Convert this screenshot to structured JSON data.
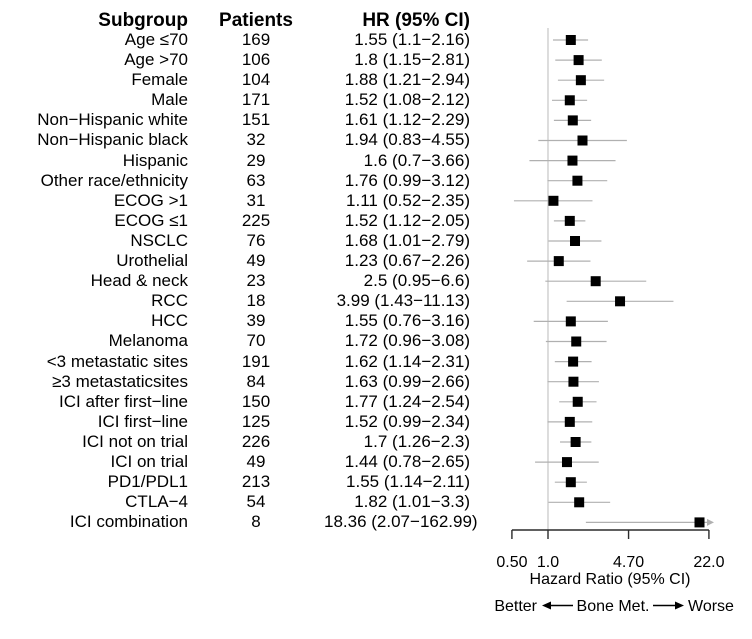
{
  "table": {
    "headers": [
      "Subgroup",
      "Patients",
      "HR (95% CI)"
    ]
  },
  "chart_data": {
    "type": "forest",
    "axis": {
      "scale": "log",
      "min": 0.5,
      "max": 22.0,
      "ref_line": 1.0,
      "ticks": [
        0.5,
        1.0,
        4.7,
        22.0
      ],
      "tick_labels": [
        "0.50",
        "1.0",
        "4.70",
        "22.0"
      ],
      "xlabel": "Hazard Ratio (95% CI)"
    },
    "footer": {
      "left": "Better",
      "center": "Bone Met.",
      "right": "Worse"
    },
    "rows": [
      {
        "subgroup": "Age ≤70",
        "patients": "169",
        "hr": 1.55,
        "lo": 1.1,
        "hi": 2.16,
        "hr_text": "1.55 (1.1−2.16)"
      },
      {
        "subgroup": "Age >70",
        "patients": "106",
        "hr": 1.8,
        "lo": 1.15,
        "hi": 2.81,
        "hr_text": "1.8 (1.15−2.81)"
      },
      {
        "subgroup": "Female",
        "patients": "104",
        "hr": 1.88,
        "lo": 1.21,
        "hi": 2.94,
        "hr_text": "1.88 (1.21−2.94)"
      },
      {
        "subgroup": "Male",
        "patients": "171",
        "hr": 1.52,
        "lo": 1.08,
        "hi": 2.12,
        "hr_text": "1.52 (1.08−2.12)"
      },
      {
        "subgroup": "Non−Hispanic white",
        "patients": "151",
        "hr": 1.61,
        "lo": 1.12,
        "hi": 2.29,
        "hr_text": "1.61 (1.12−2.29)"
      },
      {
        "subgroup": "Non−Hispanic black",
        "patients": "32",
        "hr": 1.94,
        "lo": 0.83,
        "hi": 4.55,
        "hr_text": "1.94 (0.83−4.55)"
      },
      {
        "subgroup": "Hispanic",
        "patients": "29",
        "hr": 1.6,
        "lo": 0.7,
        "hi": 3.66,
        "hr_text": "1.6 (0.7−3.66)"
      },
      {
        "subgroup": "Other race/ethnicity",
        "patients": "63",
        "hr": 1.76,
        "lo": 0.99,
        "hi": 3.12,
        "hr_text": "1.76 (0.99−3.12)"
      },
      {
        "subgroup": "ECOG >1",
        "patients": "31",
        "hr": 1.11,
        "lo": 0.52,
        "hi": 2.35,
        "hr_text": "1.11 (0.52−2.35)"
      },
      {
        "subgroup": "ECOG ≤1",
        "patients": "225",
        "hr": 1.52,
        "lo": 1.12,
        "hi": 2.05,
        "hr_text": "1.52 (1.12−2.05)"
      },
      {
        "subgroup": "NSCLC",
        "patients": "76",
        "hr": 1.68,
        "lo": 1.01,
        "hi": 2.79,
        "hr_text": "1.68 (1.01−2.79)"
      },
      {
        "subgroup": "Urothelial",
        "patients": "49",
        "hr": 1.23,
        "lo": 0.67,
        "hi": 2.26,
        "hr_text": "1.23 (0.67−2.26)"
      },
      {
        "subgroup": "Head & neck",
        "patients": "23",
        "hr": 2.5,
        "lo": 0.95,
        "hi": 6.6,
        "hr_text": "2.5 (0.95−6.6)"
      },
      {
        "subgroup": "RCC",
        "patients": "18",
        "hr": 3.99,
        "lo": 1.43,
        "hi": 11.13,
        "hr_text": "3.99 (1.43−11.13)"
      },
      {
        "subgroup": "HCC",
        "patients": "39",
        "hr": 1.55,
        "lo": 0.76,
        "hi": 3.16,
        "hr_text": "1.55 (0.76−3.16)"
      },
      {
        "subgroup": "Melanoma",
        "patients": "70",
        "hr": 1.72,
        "lo": 0.96,
        "hi": 3.08,
        "hr_text": "1.72 (0.96−3.08)"
      },
      {
        "subgroup": "<3 metastatic sites",
        "patients": "191",
        "hr": 1.62,
        "lo": 1.14,
        "hi": 2.31,
        "hr_text": "1.62 (1.14−2.31)"
      },
      {
        "subgroup": "≥3 metastaticsites",
        "patients": "84",
        "hr": 1.63,
        "lo": 0.99,
        "hi": 2.66,
        "hr_text": "1.63 (0.99−2.66)"
      },
      {
        "subgroup": "ICI after first−line",
        "patients": "150",
        "hr": 1.77,
        "lo": 1.24,
        "hi": 2.54,
        "hr_text": "1.77 (1.24−2.54)"
      },
      {
        "subgroup": "ICI first−line",
        "patients": "125",
        "hr": 1.52,
        "lo": 0.99,
        "hi": 2.34,
        "hr_text": "1.52 (0.99−2.34)"
      },
      {
        "subgroup": "ICI not on trial",
        "patients": "226",
        "hr": 1.7,
        "lo": 1.26,
        "hi": 2.3,
        "hr_text": "1.7 (1.26−2.3)"
      },
      {
        "subgroup": "ICI on trial",
        "patients": "49",
        "hr": 1.44,
        "lo": 0.78,
        "hi": 2.65,
        "hr_text": "1.44 (0.78−2.65)"
      },
      {
        "subgroup": "PD1/PDL1",
        "patients": "213",
        "hr": 1.55,
        "lo": 1.14,
        "hi": 2.11,
        "hr_text": "1.55 (1.14−2.11)"
      },
      {
        "subgroup": "CTLA−4",
        "patients": "54",
        "hr": 1.82,
        "lo": 1.01,
        "hi": 3.3,
        "hr_text": "1.82 (1.01−3.3)"
      },
      {
        "subgroup": "ICI combination",
        "patients": "8",
        "hr": 18.36,
        "lo": 2.07,
        "hi": 162.99,
        "hr_text": "18.36 (2.07−162.99)"
      }
    ]
  },
  "colors": {
    "marker": "#000000",
    "ci_line": "#b0b0b0",
    "ref_line": "#c6c6c6",
    "axis": "#2b2b2b",
    "text": "#000000"
  }
}
